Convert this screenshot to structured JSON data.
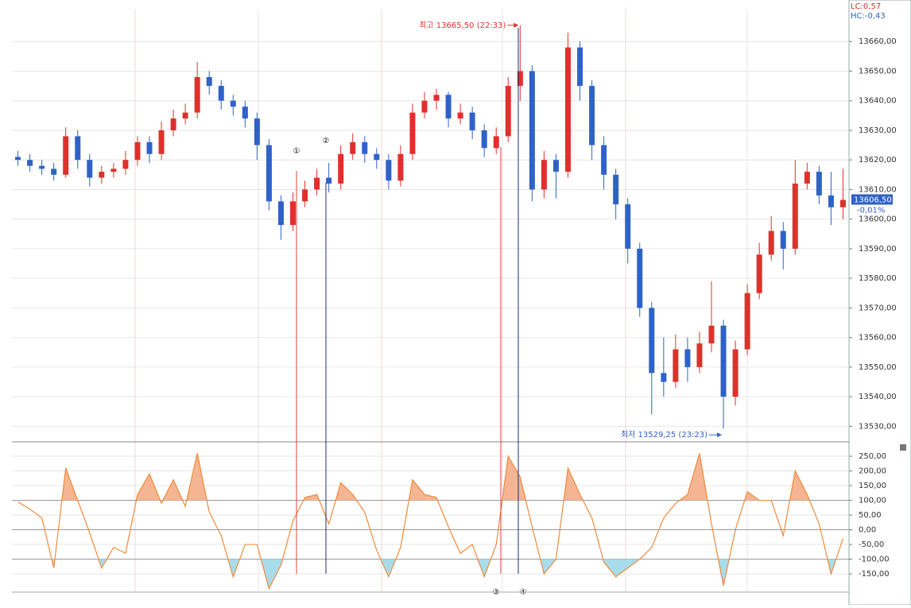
{
  "chart_data": [
    {
      "type": "candlestick",
      "up_color": "#e0302c",
      "down_color": "#2f62c8",
      "ylim": [
        13525,
        13670
      ],
      "yticks": [
        {
          "value": 13530,
          "label": "13530,00"
        },
        {
          "value": 13540,
          "label": "13540,00"
        },
        {
          "value": 13550,
          "label": "13550,00"
        },
        {
          "value": 13560,
          "label": "13560,00"
        },
        {
          "value": 13570,
          "label": "13570,00"
        },
        {
          "value": 13580,
          "label": "13580,00"
        },
        {
          "value": 13590,
          "label": "13590,00"
        },
        {
          "value": 13600,
          "label": "13600,00"
        },
        {
          "value": 13610,
          "label": "13610,00"
        },
        {
          "value": 13620,
          "label": "13620,00"
        },
        {
          "value": 13630,
          "label": "13630,00"
        },
        {
          "value": 13640,
          "label": "13640,00"
        },
        {
          "value": 13650,
          "label": "13650,00"
        },
        {
          "value": 13660,
          "label": "13660,00"
        }
      ],
      "open": [
        13621,
        13620,
        13618,
        13617,
        13615,
        13628,
        13620,
        13614,
        13616,
        13617,
        13620,
        13626,
        13622,
        13630,
        13634,
        13636,
        13648,
        13645,
        13640,
        13638,
        13634,
        13625,
        13606,
        13598,
        13606,
        13610,
        13614,
        13612,
        13622,
        13626,
        13622,
        13620,
        13613,
        13622,
        13636,
        13640,
        13642,
        13634,
        13636,
        13630,
        13624,
        13628,
        13645,
        13650,
        13610,
        13620,
        13616,
        13658,
        13645,
        13625,
        13615,
        13605,
        13590,
        13570,
        13548,
        13545,
        13556,
        13550,
        13558,
        13564,
        13540,
        13556,
        13575,
        13588,
        13596,
        13590,
        13612,
        13616,
        13608,
        13604
      ],
      "high": [
        13623,
        13622,
        13620,
        13619,
        13631,
        13630,
        13622,
        13618,
        13619,
        13623,
        13628,
        13628,
        13633,
        13637,
        13639,
        13653,
        13650,
        13647,
        13642,
        13640,
        13636,
        13627,
        13608,
        13609,
        13613,
        13617,
        13619,
        13625,
        13629,
        13628,
        13624,
        13622,
        13625,
        13639,
        13643,
        13644,
        13643,
        13639,
        13638,
        13632,
        13631,
        13648,
        13665.5,
        13652,
        13623,
        13622,
        13663,
        13660,
        13647,
        13628,
        13617,
        13607,
        13592,
        13572,
        13560,
        13561,
        13560,
        13562,
        13579,
        13566,
        13559,
        13578,
        13592,
        13601,
        13599,
        13620,
        13619,
        13618,
        13616,
        13617
      ],
      "low": [
        13618,
        13616,
        13615,
        13613,
        13614,
        13617,
        13611,
        13612,
        13614,
        13615,
        13618,
        13619,
        13620,
        13628,
        13632,
        13634,
        13642,
        13637,
        13635,
        13631,
        13620,
        13603,
        13593,
        13596,
        13604,
        13608,
        13609,
        13610,
        13620,
        13619,
        13617,
        13610,
        13611,
        13620,
        13634,
        13637,
        13631,
        13632,
        13627,
        13621,
        13622,
        13626,
        13640,
        13606,
        13607,
        13607,
        13614,
        13640,
        13620,
        13610,
        13600,
        13585,
        13567,
        13534,
        13540,
        13543,
        13545,
        13548,
        13555,
        13529.25,
        13537,
        13554,
        13573,
        13586,
        13583,
        13588,
        13610,
        13605,
        13598,
        13600
      ],
      "close": [
        13620,
        13618,
        13617,
        13615,
        13628,
        13620,
        13614,
        13616,
        13617,
        13620,
        13626,
        13622,
        13630,
        13634,
        13636,
        13648,
        13645,
        13640,
        13638,
        13634,
        13625,
        13606,
        13598,
        13606,
        13610,
        13614,
        13612,
        13622,
        13626,
        13622,
        13620,
        13613,
        13622,
        13636,
        13640,
        13642,
        13634,
        13636,
        13630,
        13624,
        13628,
        13645,
        13650,
        13610,
        13620,
        13616,
        13658,
        13645,
        13625,
        13615,
        13605,
        13590,
        13570,
        13548,
        13545,
        13556,
        13550,
        13558,
        13564,
        13540,
        13556,
        13575,
        13588,
        13596,
        13590,
        13612,
        13616,
        13608,
        13604,
        13606.5
      ],
      "high_label": "최고 13665,50 (22:33)",
      "low_label": "최저 13529,25 (23:23)",
      "lc_label": "LC:0,57",
      "hc_label": "HC:-0,43",
      "last_price": {
        "value": 13606.5,
        "label": "13606,50"
      },
      "change_label": "-0,01%",
      "markers": [
        {
          "label": "①",
          "color": "#e0403a"
        },
        {
          "label": "②",
          "color": "#1d2f6e"
        },
        {
          "label": "③",
          "color": "#e0403a"
        },
        {
          "label": "④",
          "color": "#1d2f6e"
        }
      ]
    },
    {
      "type": "line",
      "color": "#f08a3c",
      "upper_fill": "#f6b592",
      "lower_fill": "#a9dcea",
      "upper_band": 100,
      "lower_band": -100,
      "ylim": [
        -212,
        288
      ],
      "yticks": [
        {
          "value": 250,
          "label": "250,00"
        },
        {
          "value": 200,
          "label": "200,00"
        },
        {
          "value": 150,
          "label": "150,00"
        },
        {
          "value": 100,
          "label": "100,00"
        },
        {
          "value": 50,
          "label": "50,00"
        },
        {
          "value": 0,
          "label": "0,00"
        },
        {
          "value": -50,
          "label": "-50,00"
        },
        {
          "value": -100,
          "label": "-100,00"
        },
        {
          "value": -150,
          "label": "-150,00"
        }
      ],
      "values": [
        95,
        70,
        40,
        -130,
        210,
        100,
        -10,
        -130,
        -60,
        -80,
        120,
        190,
        90,
        170,
        80,
        260,
        60,
        -20,
        -160,
        -50,
        -50,
        -200,
        -120,
        30,
        110,
        120,
        20,
        160,
        120,
        60,
        -70,
        -160,
        -60,
        170,
        120,
        110,
        10,
        -80,
        -50,
        -160,
        -50,
        250,
        180,
        10,
        -150,
        -100,
        210,
        120,
        40,
        -110,
        -160,
        -130,
        -100,
        -60,
        40,
        90,
        120,
        260,
        20,
        -190,
        0,
        130,
        100,
        100,
        -20,
        200,
        120,
        20,
        -150,
        -30
      ]
    }
  ]
}
